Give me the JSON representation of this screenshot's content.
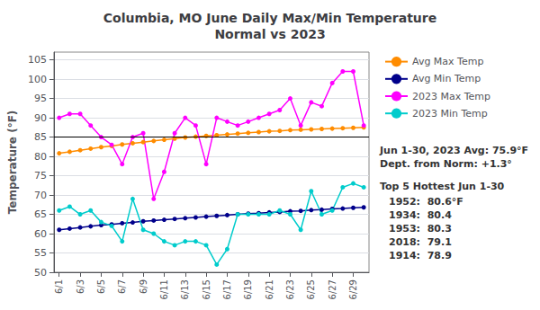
{
  "chart_data": {
    "type": "line",
    "title": "Columbia, MO June Daily Max/Min Temperature\nNormal vs 2023",
    "ylabel": "Temperature (°F)",
    "x": [
      1,
      2,
      3,
      4,
      5,
      6,
      7,
      8,
      9,
      10,
      11,
      12,
      13,
      14,
      15,
      16,
      17,
      18,
      19,
      20,
      21,
      22,
      23,
      24,
      25,
      26,
      27,
      28,
      29,
      30
    ],
    "xlim": [
      0.5,
      30.5
    ],
    "xticks": [
      {
        "value": 1,
        "label": "6/1"
      },
      {
        "value": 3,
        "label": "6/3"
      },
      {
        "value": 5,
        "label": "6/5"
      },
      {
        "value": 7,
        "label": "6/7"
      },
      {
        "value": 9,
        "label": "6/9"
      },
      {
        "value": 11,
        "label": "6/11"
      },
      {
        "value": 13,
        "label": "6/13"
      },
      {
        "value": 15,
        "label": "6/15"
      },
      {
        "value": 17,
        "label": "6/17"
      },
      {
        "value": 19,
        "label": "6/19"
      },
      {
        "value": 21,
        "label": "6/21"
      },
      {
        "value": 23,
        "label": "6/23"
      },
      {
        "value": 25,
        "label": "6/25"
      },
      {
        "value": 27,
        "label": "6/27"
      },
      {
        "value": 29,
        "label": "6/29"
      }
    ],
    "ylim": [
      50,
      107
    ],
    "yticks": [
      50,
      55,
      60,
      65,
      70,
      75,
      80,
      85,
      90,
      95,
      100,
      105
    ],
    "grid": true,
    "legend": "right",
    "marker": "circle",
    "hlines": [
      85
    ],
    "series": [
      {
        "name": "Avg Max Temp",
        "color": "#FF8C00",
        "values": [
          80.8,
          81.2,
          81.6,
          82.0,
          82.4,
          82.7,
          83.1,
          83.4,
          83.7,
          84.0,
          84.3,
          84.6,
          84.9,
          85.1,
          85.3,
          85.5,
          85.7,
          85.9,
          86.1,
          86.3,
          86.5,
          86.6,
          86.8,
          86.9,
          87.0,
          87.1,
          87.2,
          87.3,
          87.4,
          87.5
        ]
      },
      {
        "name": "Avg Min Temp",
        "color": "#00008B",
        "values": [
          61.0,
          61.3,
          61.6,
          61.9,
          62.2,
          62.4,
          62.7,
          62.9,
          63.2,
          63.4,
          63.6,
          63.8,
          64.0,
          64.2,
          64.4,
          64.6,
          64.8,
          65.0,
          65.2,
          65.3,
          65.5,
          65.6,
          65.8,
          65.9,
          66.1,
          66.2,
          66.4,
          66.5,
          66.7,
          66.8
        ]
      },
      {
        "name": "2023 Max Temp",
        "color": "#FF00FF",
        "values": [
          90,
          91,
          91,
          88,
          85,
          83,
          78,
          85,
          86,
          69,
          76,
          86,
          90,
          88,
          78,
          90,
          89,
          88,
          89,
          90,
          91,
          92,
          95,
          88,
          94,
          93,
          99,
          102,
          102,
          88
        ]
      },
      {
        "name": "2023 Min Temp",
        "color": "#00CCCC",
        "values": [
          66,
          67,
          65,
          66,
          63,
          62,
          58,
          69,
          61,
          60,
          58,
          57,
          58,
          58,
          57,
          52,
          56,
          65,
          65,
          65,
          65,
          66,
          65,
          61,
          71,
          65,
          66,
          72,
          73,
          72
        ]
      }
    ],
    "annotation": "Jun 1-30, 2023 Avg: 75.9°F\nDept. from Norm: +1.3°",
    "top5_title": "Top 5 Hottest Jun 1-30",
    "top5": [
      "1952:  80.6°F",
      "1934:  80.4",
      "1953:  80.3",
      "2018:  79.1",
      "1914:  78.9"
    ]
  }
}
